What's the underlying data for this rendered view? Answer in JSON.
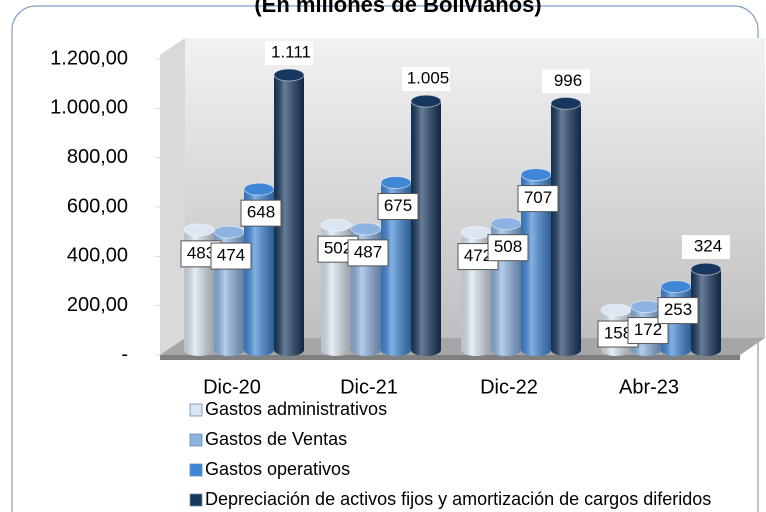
{
  "chart_data": {
    "type": "bar",
    "subtitle": "(En millones de Bolivianos)",
    "categories": [
      "Dic-20",
      "Dic-21",
      "Dic-22",
      "Abr-23"
    ],
    "series": [
      {
        "name": "Gastos administrativos",
        "color": "#dce6f2",
        "values": [
          483,
          502,
          472,
          158
        ]
      },
      {
        "name": "Gastos de Ventas",
        "color": "#8db3e2",
        "values": [
          474,
          487,
          508,
          172
        ]
      },
      {
        "name": "Gastos operativos",
        "color": "#3f86d6",
        "values": [
          648,
          675,
          707,
          253
        ]
      },
      {
        "name": "Depreciación de activos fijos y amortización de cargos diferidos",
        "color": "#17375e",
        "values": [
          1111,
          1005,
          996,
          324
        ],
        "value_labels": [
          "1.111",
          "1.005",
          "996",
          "324"
        ]
      }
    ],
    "ylim": [
      0,
      1200
    ],
    "yticks": [
      {
        "value": 0,
        "label": "-"
      },
      {
        "value": 200,
        "label": "200,00"
      },
      {
        "value": 400,
        "label": "400,00"
      },
      {
        "value": 600,
        "label": "600,00"
      },
      {
        "value": 800,
        "label": "800,00"
      },
      {
        "value": 1000,
        "label": "1.000,00"
      },
      {
        "value": 1200,
        "label": "1.200,00"
      }
    ],
    "legend": "bottom-left"
  }
}
